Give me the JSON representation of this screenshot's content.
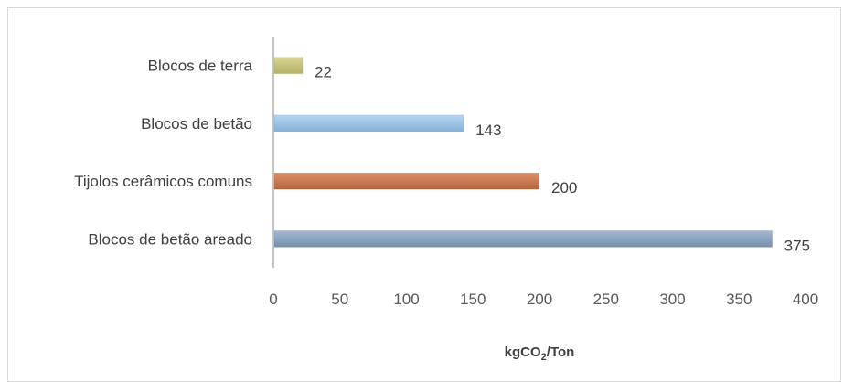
{
  "chart_data": {
    "type": "bar",
    "orientation": "horizontal",
    "categories": [
      "Blocos de terra",
      "Blocos de betão",
      "Tijolos cerâmicos comuns",
      "Blocos de betão areado"
    ],
    "values": [
      22,
      143,
      200,
      375
    ],
    "colors": [
      "#c5c27a",
      "#9dc3e6",
      "#c97a52",
      "#8aa4c0"
    ],
    "xlabel": "kgCO",
    "xlabel_sub": "2",
    "xlabel_suffix": "/Ton",
    "xlim": [
      0,
      400
    ],
    "xticks": [
      "0",
      "50",
      "100",
      "150",
      "200",
      "250",
      "300",
      "350",
      "400"
    ],
    "grid": false,
    "data_labels": [
      "22",
      "143",
      "200",
      "375"
    ]
  }
}
